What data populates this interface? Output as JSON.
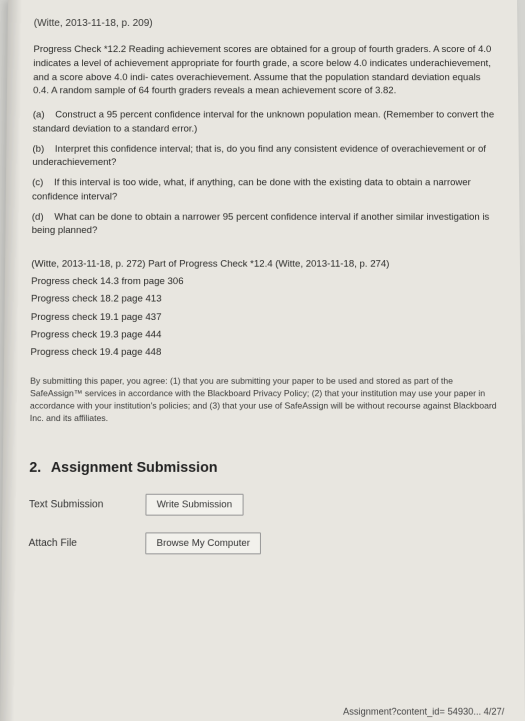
{
  "top_citation": "(Witte, 2013-11-18, p. 209)",
  "problem": {
    "intro": "Progress Check *12.2 Reading achievement scores are obtained for a group of fourth graders. A score of 4.0 indicates a level of achievement appropriate for fourth grade, a score below 4.0 indicates underachievement, and a score above 4.0 indi- cates overachievement. Assume that the population standard deviation equals 0.4. A random sample of 64 fourth graders reveals a mean achievement score of 3.82.",
    "parts": [
      {
        "label": "(a)",
        "text": "Construct a 95 percent confidence interval for the unknown population mean. (Remember to convert the standard deviation to a standard error.)"
      },
      {
        "label": "(b)",
        "text": "Interpret this confidence interval; that is, do you find any consistent evidence of overachievement or of underachievement?"
      },
      {
        "label": "(c)",
        "text": "If this interval is too wide, what, if anything, can be done with the existing data to obtain a narrower confidence interval?"
      },
      {
        "label": "(d)",
        "text": "What can be done to obtain a narrower 95 percent confidence interval if another similar investigation is being planned?"
      }
    ]
  },
  "mid": {
    "cite": "(Witte, 2013-11-18, p. 272) Part of Progress Check *12.4 (Witte, 2013-11-18, p. 274)",
    "checks": [
      "Progress check 14.3 from page 306",
      "Progress check  18.2 page 413",
      "Progress check  19.1 page 437",
      "Progress check  19.3 page 444",
      "Progress check  19.4 page 448"
    ]
  },
  "disclaimer": "By submitting this paper, you agree: (1) that you are submitting your paper to be used and stored as part of the SafeAssign™ services in accordance with the Blackboard Privacy Policy; (2) that your institution may use your paper in accordance with your institution's policies; and (3) that your use of SafeAssign will be without recourse against Blackboard Inc. and its affiliates.",
  "section": {
    "num": "2.",
    "title": "Assignment Submission"
  },
  "submission": {
    "text_label": "Text Submission",
    "write_btn": "Write Submission",
    "attach_label": "Attach File",
    "browse_btn": "Browse My Computer"
  },
  "footer": "Assignment?content_id= 54930...  4/27/",
  "colors": {
    "page_bg": "#d4d4d0",
    "paper_bg": "#e8e6e0",
    "text": "#2a2a28",
    "btn_border": "#999999",
    "btn_bg": "#f2f1ec"
  }
}
